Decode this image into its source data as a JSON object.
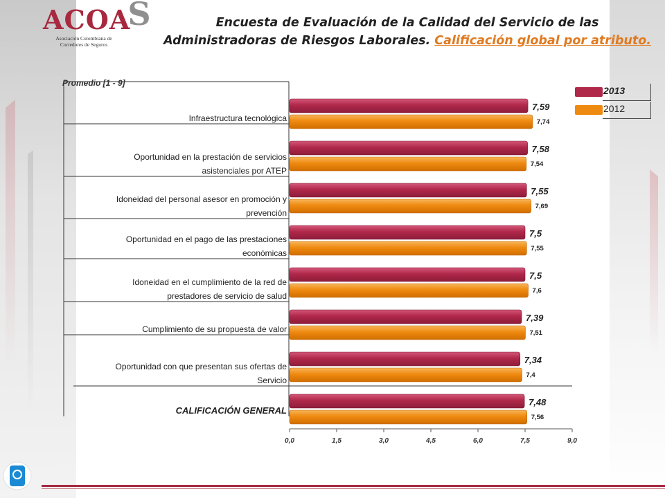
{
  "title": {
    "line1": "Encuesta de Evaluación de la Calidad del Servicio de las",
    "line2_main": "Administradoras de Riesgos Laborales.",
    "line2_sub": "Calificación global por atributo."
  },
  "logo": {
    "text": "ACOA",
    "s": "S",
    "subtitle_line1": "Asociación Colombiana de",
    "subtitle_line2": "Corredores de Seguros"
  },
  "colors": {
    "series_2013": "#b0284a",
    "series_2012": "#ef8a10",
    "brand": "#a8293f"
  },
  "chart_data": {
    "type": "bar",
    "orientation": "horizontal",
    "ylabel": "Promedio [1 - 9]",
    "xlim": [
      0,
      9
    ],
    "x_ticks": [
      "0,0",
      "1,5",
      "3,0",
      "4,5",
      "6,0",
      "7,5",
      "9,0"
    ],
    "categories": [
      "Infraestructura tecnológica",
      "Oportunidad en la prestación de servicios asistenciales por ATEP",
      "Idoneidad del personal asesor en promoción y prevención",
      "Oportunidad en el pago de las prestaciones económicas",
      "Idoneidad en el cumplimiento de la red de prestadores de servicio de salud",
      "Cumplimiento de su propuesta de valor",
      "Oportunidad con que presentan sus ofertas de Servicio",
      "CALIFICACIÓN GENERAL"
    ],
    "category_lines": [
      [
        "Infraestructura tecnológica"
      ],
      [
        "Oportunidad en la prestación de servicios",
        "asistenciales por ATEP"
      ],
      [
        "Idoneidad del personal asesor en promoción y",
        "prevención"
      ],
      [
        "Oportunidad en el pago de las prestaciones",
        "económicas"
      ],
      [
        "Idoneidad en el cumplimiento de la red de",
        "prestadores de servicio de salud"
      ],
      [
        "Cumplimiento de su propuesta de valor"
      ],
      [
        "Oportunidad con que presentan sus ofertas de",
        "Servicio"
      ],
      [
        "CALIFICACIÓN GENERAL"
      ]
    ],
    "series": [
      {
        "name": "2013",
        "values": [
          7.59,
          7.58,
          7.55,
          7.5,
          7.5,
          7.39,
          7.34,
          7.48
        ],
        "labels": [
          "7,59",
          "7,58",
          "7,55",
          "7,5",
          "7,5",
          "7,39",
          "7,34",
          "7,48"
        ]
      },
      {
        "name": "2012",
        "values": [
          7.74,
          7.54,
          7.69,
          7.55,
          7.6,
          7.51,
          7.4,
          7.56
        ],
        "labels": [
          "7,74",
          "7,54",
          "7,69",
          "7,55",
          "7,6",
          "7,51",
          "7,4",
          "7,56"
        ]
      }
    ],
    "legend_position": "top-right",
    "grid": false
  }
}
